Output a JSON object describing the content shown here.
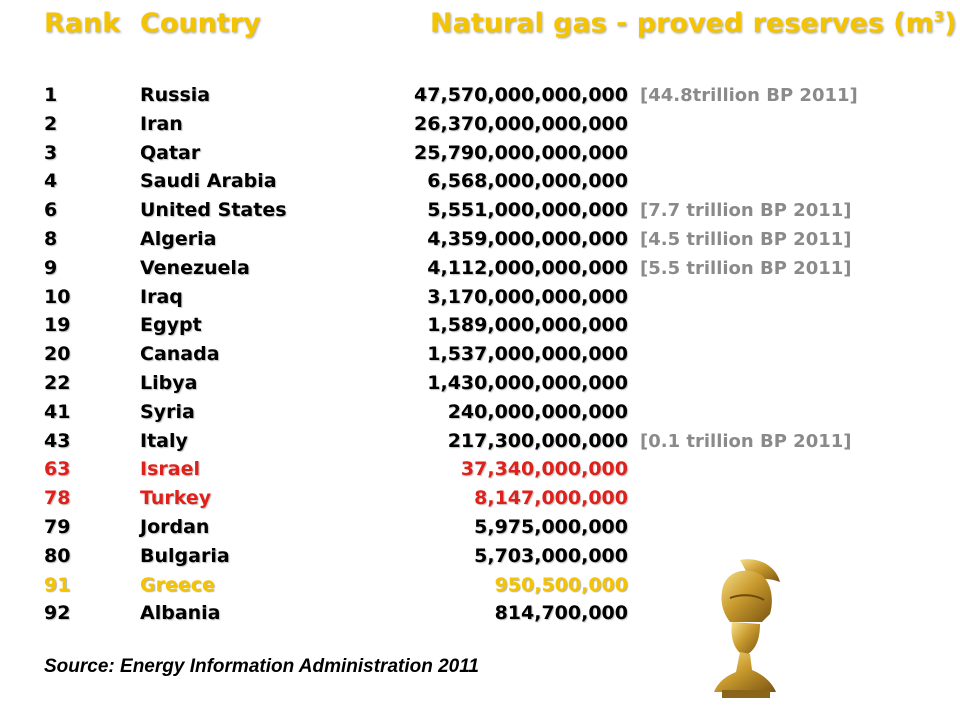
{
  "header": {
    "rank": "Rank",
    "country": "Country",
    "reserves": "Natural gas - proved reserves (m",
    "reserves_sup": "3",
    "reserves_close": ")"
  },
  "rows": [
    {
      "rank": "1",
      "country": "Russia",
      "value": "47,570,000,000,000",
      "note": "[44.8trillion BP 2011]"
    },
    {
      "rank": "2",
      "country": "Iran",
      "value": "26,370,000,000,000",
      "note": ""
    },
    {
      "rank": "3",
      "country": "Qatar",
      "value": "25,790,000,000,000",
      "note": ""
    },
    {
      "rank": "4",
      "country": "Saudi Arabia",
      "value": "6,568,000,000,000",
      "note": ""
    },
    {
      "rank": "6",
      "country": "United States",
      "value": "5,551,000,000,000",
      "note": "[7.7 trillion BP 2011]"
    },
    {
      "rank": "8",
      "country": "Algeria",
      "value": "4,359,000,000,000",
      "note": "[4.5 trillion BP 2011]"
    },
    {
      "rank": "9",
      "country": "Venezuela",
      "value": "4,112,000,000,000",
      "note": "[5.5 trillion BP 2011]"
    },
    {
      "rank": "10",
      "country": "Iraq",
      "value": "3,170,000,000,000",
      "note": ""
    },
    {
      "rank": "19",
      "country": "Egypt",
      "value": "1,589,000,000,000",
      "note": ""
    },
    {
      "rank": "20",
      "country": "Canada",
      "value": "1,537,000,000,000",
      "note": ""
    },
    {
      "rank": "22",
      "country": "Libya",
      "value": "1,430,000,000,000",
      "note": ""
    },
    {
      "rank": "41",
      "country": "Syria",
      "value": "240,000,000,000",
      "note": ""
    },
    {
      "rank": "43",
      "country": "Italy",
      "value": "217,300,000,000",
      "note": "[0.1 trillion BP 2011]"
    },
    {
      "rank": "63",
      "country": "Israel",
      "value": "37,340,000,000",
      "note": ""
    },
    {
      "rank": "78",
      "country": "Turkey",
      "value": "8,147,000,000",
      "note": ""
    },
    {
      "rank": "79",
      "country": "Jordan",
      "value": "5,975,000,000",
      "note": ""
    },
    {
      "rank": "80",
      "country": "Bulgaria",
      "value": "5,703,000,000",
      "note": ""
    },
    {
      "rank": "91",
      "country": "Greece",
      "value": "950,500,000",
      "note": ""
    },
    {
      "rank": "92",
      "country": "Albania",
      "value": "814,700,000",
      "note": ""
    }
  ],
  "source": "Source: Energy Information Administration 2011",
  "colors": {
    "header": "#f5c400",
    "highlight_red": "#e0201b",
    "highlight_gold": "#f5c400",
    "note_gray": "#8a8a8a"
  },
  "bust": {
    "icon": "athena-helmet-bust-icon"
  }
}
